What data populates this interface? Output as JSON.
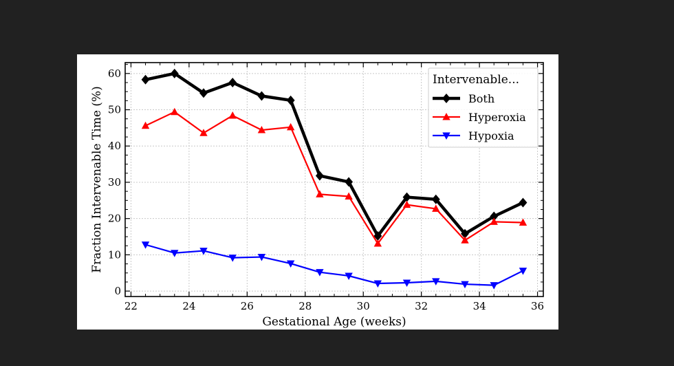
{
  "chart_data": {
    "type": "line",
    "xlabel": "Gestational Age (weeks)",
    "ylabel": "Fraction Intervenable Time (%)",
    "xlim": [
      21.8,
      36.2
    ],
    "ylim": [
      -1.5,
      63
    ],
    "xticks": [
      22,
      24,
      26,
      28,
      30,
      32,
      34,
      36
    ],
    "yticks": [
      0,
      10,
      20,
      30,
      40,
      50,
      60
    ],
    "grid": true,
    "legend": {
      "title": "Intervenable...",
      "placement": "top-right"
    },
    "x": [
      22.5,
      23.5,
      24.5,
      25.5,
      26.5,
      27.5,
      28.5,
      29.5,
      30.5,
      31.5,
      32.5,
      33.5,
      34.5,
      35.5
    ],
    "series": [
      {
        "name": "Both",
        "color": "#000000",
        "marker": "diamond",
        "values": [
          58.3,
          60.0,
          54.6,
          57.5,
          53.8,
          52.6,
          31.8,
          30.1,
          15.2,
          25.9,
          25.3,
          15.8,
          20.6,
          24.4
        ]
      },
      {
        "name": "Hyperoxia",
        "color": "#ff0000",
        "marker": "triangle-up",
        "values": [
          45.6,
          49.4,
          43.6,
          48.4,
          44.4,
          45.2,
          26.7,
          26.1,
          13.1,
          23.8,
          22.7,
          14.0,
          19.1,
          18.9
        ]
      },
      {
        "name": "Hypoxia",
        "color": "#0000ff",
        "marker": "triangle-down",
        "values": [
          12.8,
          10.5,
          11.1,
          9.2,
          9.4,
          7.6,
          5.2,
          4.2,
          2.1,
          2.3,
          2.7,
          1.9,
          1.6,
          5.6
        ]
      }
    ]
  }
}
